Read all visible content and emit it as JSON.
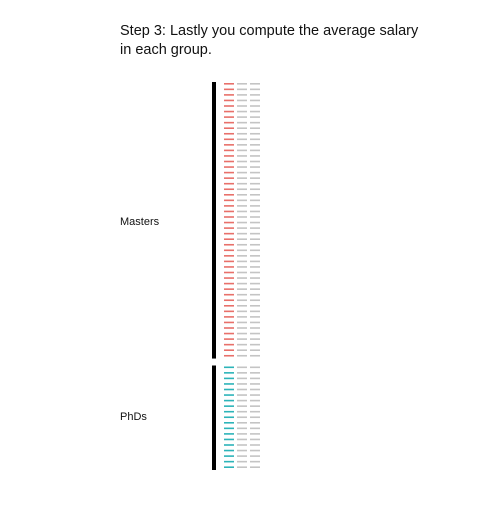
{
  "title": "Step 3: Lastly you compute the average salary in each group.",
  "colors": {
    "masters": "#e8706a",
    "phds": "#2db4b9",
    "other": "#c4c4c4",
    "bracket": "#000000"
  },
  "chart_data": {
    "type": "table",
    "groups": [
      {
        "name": "Masters",
        "rows": 50,
        "color_key": "masters"
      },
      {
        "name": "PhDs",
        "rows": 19,
        "color_key": "phds"
      }
    ],
    "columns_per_row": 3
  }
}
